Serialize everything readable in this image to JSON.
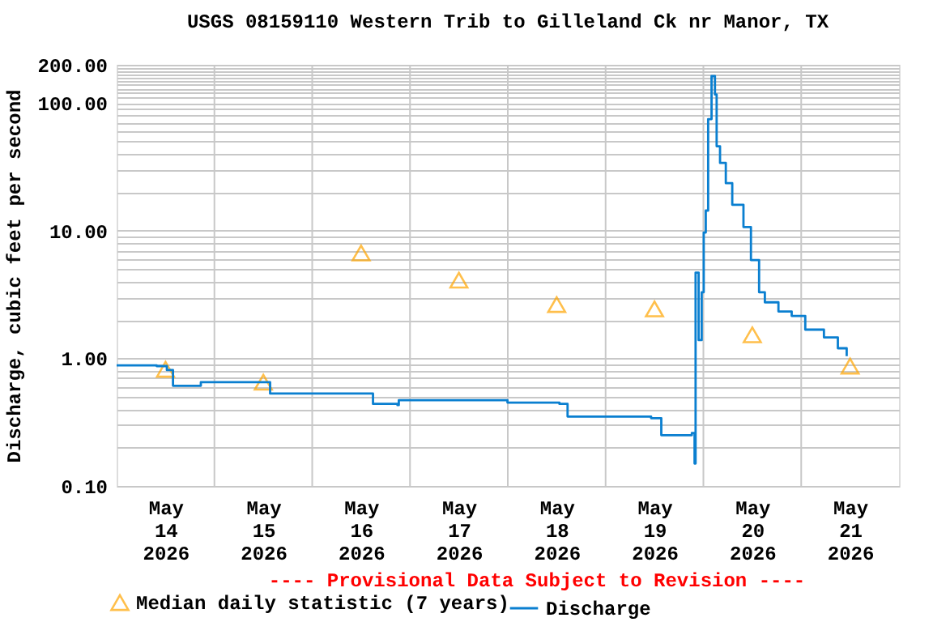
{
  "chart_data": {
    "type": "step",
    "title": "USGS 08159110 Western Trib to Gilleland Ck nr Manor, TX",
    "ylabel": "Discharge, cubic feet per second",
    "annotations": [
      "---- Provisional Data Subject to Revision ----"
    ],
    "log": "y",
    "grid": true,
    "legend": "bottom",
    "xlim": [
      "2026-05-14T00:00",
      "2026-05-22T00:00"
    ],
    "xticks": [
      {
        "value": "2026-05-14T12:00",
        "label": "May 14 2026"
      },
      {
        "value": "2026-05-15T12:00",
        "label": "May 15 2026"
      },
      {
        "value": "2026-05-16T12:00",
        "label": "May 16 2026"
      },
      {
        "value": "2026-05-17T12:00",
        "label": "May 17 2026"
      },
      {
        "value": "2026-05-18T12:00",
        "label": "May 18 2026"
      },
      {
        "value": "2026-05-19T12:00",
        "label": "May 19 2026"
      },
      {
        "value": "2026-05-20T12:00",
        "label": "May 20 2026"
      },
      {
        "value": "2026-05-21T12:00",
        "label": "May 21 2026"
      },
      {
        "value": "2026-05-15T00:00",
        "label": null
      },
      {
        "value": "2026-05-16T00:00",
        "label": null
      },
      {
        "value": "2026-05-17T00:00",
        "label": null
      },
      {
        "value": "2026-05-18T00:00",
        "label": null
      },
      {
        "value": "2026-05-19T00:00",
        "label": null
      },
      {
        "value": "2026-05-20T00:00",
        "label": null
      },
      {
        "value": "2026-05-21T00:00",
        "label": null
      }
    ],
    "ylim": [
      0.1,
      200
    ],
    "yticks": [
      {
        "value": 0.1,
        "label": "0.10"
      },
      {
        "value": 1,
        "label": "1.00"
      },
      {
        "value": 10,
        "label": "10.00"
      },
      {
        "value": 100,
        "label": "100.00"
      },
      {
        "value": 200,
        "label": "200.00"
      },
      {
        "value": 0.2,
        "label": null
      },
      {
        "value": 0.3,
        "label": null
      },
      {
        "value": 0.4,
        "label": null
      },
      {
        "value": 0.5,
        "label": null
      },
      {
        "value": 0.6,
        "label": null
      },
      {
        "value": 0.7,
        "label": null
      },
      {
        "value": 0.8,
        "label": null
      },
      {
        "value": 0.9,
        "label": null
      },
      {
        "value": 2,
        "label": null
      },
      {
        "value": 3,
        "label": null
      },
      {
        "value": 4,
        "label": null
      },
      {
        "value": 5,
        "label": null
      },
      {
        "value": 6,
        "label": null
      },
      {
        "value": 7,
        "label": null
      },
      {
        "value": 8,
        "label": null
      },
      {
        "value": 9,
        "label": null
      },
      {
        "value": 20,
        "label": null
      },
      {
        "value": 30,
        "label": null
      },
      {
        "value": 40,
        "label": null
      },
      {
        "value": 50,
        "label": null
      },
      {
        "value": 60,
        "label": null
      },
      {
        "value": 70,
        "label": null
      },
      {
        "value": 80,
        "label": null
      },
      {
        "value": 90,
        "label": null
      },
      {
        "value": 110,
        "label": null
      },
      {
        "value": 120,
        "label": null
      },
      {
        "value": 130,
        "label": null
      },
      {
        "value": 140,
        "label": null
      },
      {
        "value": 150,
        "label": null
      },
      {
        "value": 160,
        "label": null
      },
      {
        "value": 170,
        "label": null
      },
      {
        "value": 180,
        "label": null
      },
      {
        "value": 190,
        "label": null
      }
    ],
    "series": [
      {
        "name": "Median daily statistic (7 years)",
        "type": "scatter",
        "marker": "triangle",
        "color": "#ffa500",
        "x": [
          "2026-05-14T12:00",
          "2026-05-15T12:00",
          "2026-05-16T12:00",
          "2026-05-17T12:00",
          "2026-05-18T12:00",
          "2026-05-19T12:00",
          "2026-05-20T12:00",
          "2026-05-21T12:00"
        ],
        "values": [
          0.82,
          0.65,
          6.7,
          4.1,
          2.64,
          2.44,
          1.53,
          0.87
        ]
      },
      {
        "name": "Discharge",
        "color": "#0a7fd0",
        "x": [
          "2026-05-14T00:00",
          "2026-05-14T09:50",
          "2026-05-14T12:20",
          "2026-05-14T13:50",
          "2026-05-14T20:20",
          "2026-05-14T20:40",
          "2026-05-15T11:00",
          "2026-05-15T13:40",
          "2026-05-16T10:55",
          "2026-05-16T14:55",
          "2026-05-16T20:55",
          "2026-05-16T21:15",
          "2026-05-17T23:55",
          "2026-05-18T12:40",
          "2026-05-18T14:40",
          "2026-05-19T11:10",
          "2026-05-19T13:40",
          "2026-05-19T21:10",
          "2026-05-19T21:50",
          "2026-05-19T22:05",
          "2026-05-19T22:50",
          "2026-05-19T23:35",
          "2026-05-20T00:05",
          "2026-05-20T00:35",
          "2026-05-20T01:10",
          "2026-05-20T02:00",
          "2026-05-20T02:50",
          "2026-05-20T03:15",
          "2026-05-20T04:05",
          "2026-05-20T05:30",
          "2026-05-20T07:05",
          "2026-05-20T09:50",
          "2026-05-20T11:40",
          "2026-05-20T13:40",
          "2026-05-20T15:05",
          "2026-05-20T18:25",
          "2026-05-20T21:40",
          "2026-05-21T01:00",
          "2026-05-21T05:35",
          "2026-05-21T09:00",
          "2026-05-21T11:10"
        ],
        "values": [
          0.88,
          0.87,
          0.81,
          0.61,
          0.61,
          0.65,
          0.65,
          0.53,
          0.53,
          0.44,
          0.43,
          0.47,
          0.45,
          0.44,
          0.35,
          0.34,
          0.25,
          0.26,
          0.15,
          4.7,
          1.39,
          3.3,
          9.7,
          14.4,
          75,
          163,
          117,
          46,
          34,
          23.6,
          16,
          10.7,
          5.9,
          3.3,
          2.75,
          2.33,
          2.15,
          1.68,
          1.46,
          1.2,
          1.04
        ]
      }
    ]
  }
}
